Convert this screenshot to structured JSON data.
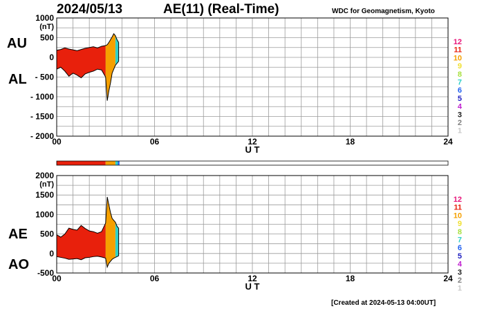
{
  "header": {
    "date": "2024/05/13",
    "title": "AE(11) (Real-Time)",
    "organization": "WDC for Geomagnetism, Kyoto"
  },
  "footer": {
    "created": "[Created at 2024-05-13 04:00UT]"
  },
  "legend": {
    "hours": [
      {
        "label": "12",
        "color": "#e8157a"
      },
      {
        "label": "11",
        "color": "#e8200c"
      },
      {
        "label": "10",
        "color": "#f5a000"
      },
      {
        "label": "9",
        "color": "#f0e030"
      },
      {
        "label": "8",
        "color": "#a8e040"
      },
      {
        "label": "7",
        "color": "#30d0c8"
      },
      {
        "label": "6",
        "color": "#2060f0"
      },
      {
        "label": "5",
        "color": "#2020c0"
      },
      {
        "label": "4",
        "color": "#c020d0"
      },
      {
        "label": "3",
        "color": "#202020"
      },
      {
        "label": "2",
        "color": "#808080"
      },
      {
        "label": "1",
        "color": "#c8c8c8"
      }
    ]
  },
  "colors": {
    "hour_11": "#e8200c",
    "hour_10": "#f5a000",
    "hour_7": "#30d0c8",
    "hour_6": "#2060f0",
    "grid": "#9a9a9a",
    "line": "#000000"
  },
  "status_bar": {
    "segments": [
      {
        "from_hour": 0,
        "to_hour": 3.0,
        "color": "#e8200c"
      },
      {
        "from_hour": 3.0,
        "to_hour": 3.6,
        "color": "#f5a000"
      },
      {
        "from_hour": 3.6,
        "to_hour": 3.75,
        "color": "#30d0c8"
      },
      {
        "from_hour": 3.75,
        "to_hour": 3.85,
        "color": "#2060f0"
      }
    ]
  },
  "chart_data": [
    {
      "type": "area",
      "panel": "AU/AL",
      "series_labels": [
        "AU",
        "AL"
      ],
      "ylabel": "(nT)",
      "xlabel": "U T",
      "xlim": [
        0,
        24
      ],
      "ylim": [
        -2000,
        1000
      ],
      "yticks": [
        1000,
        500,
        0,
        -500,
        -1000,
        -1500,
        -2000
      ],
      "yticklabels": [
        "1000",
        "500",
        "0",
        "- 500",
        "- 1000",
        "- 1500",
        "- 2000"
      ],
      "xticks": [
        0,
        6,
        12,
        18,
        24
      ],
      "xticklabels": [
        "00",
        "06",
        "12",
        "18",
        "24"
      ],
      "grid": true,
      "x": [
        0,
        0.25,
        0.5,
        0.75,
        1.0,
        1.25,
        1.5,
        1.75,
        2.0,
        2.25,
        2.5,
        2.75,
        3.0,
        3.1,
        3.2,
        3.3,
        3.4,
        3.5,
        3.6,
        3.7,
        3.8
      ],
      "upper": [
        180,
        200,
        240,
        210,
        190,
        170,
        200,
        230,
        250,
        270,
        240,
        280,
        300,
        320,
        380,
        450,
        520,
        600,
        550,
        450,
        380
      ],
      "lower": [
        -300,
        -250,
        -350,
        -480,
        -400,
        -450,
        -520,
        -420,
        -380,
        -350,
        -300,
        -320,
        -500,
        -1100,
        -850,
        -650,
        -400,
        -300,
        -200,
        -150,
        -100
      ],
      "hour_colors": [
        "#e8200c",
        "#f5a000",
        "#30d0c8"
      ]
    },
    {
      "type": "area",
      "panel": "AE/AO",
      "series_labels": [
        "AE",
        "AO"
      ],
      "ylabel": "(nT)",
      "xlabel": "U T",
      "xlim": [
        0,
        24
      ],
      "ylim": [
        -500,
        2000
      ],
      "yticks": [
        2000,
        1500,
        1000,
        500,
        0,
        -500
      ],
      "yticklabels": [
        "2000",
        "1500",
        "1000",
        "500",
        "0",
        "-500"
      ],
      "xticks": [
        0,
        6,
        12,
        18,
        24
      ],
      "xticklabels": [
        "00",
        "06",
        "12",
        "18",
        "24"
      ],
      "grid": true,
      "x": [
        0,
        0.25,
        0.5,
        0.75,
        1.0,
        1.25,
        1.5,
        1.75,
        2.0,
        2.25,
        2.5,
        2.75,
        3.0,
        3.1,
        3.2,
        3.3,
        3.4,
        3.5,
        3.6,
        3.7,
        3.8
      ],
      "upper": [
        480,
        420,
        500,
        650,
        620,
        600,
        720,
        640,
        580,
        560,
        520,
        560,
        780,
        1450,
        1250,
        1050,
        900,
        850,
        800,
        700,
        650
      ],
      "lower": [
        -80,
        -100,
        -120,
        -150,
        -140,
        -130,
        -160,
        -110,
        -100,
        -80,
        -70,
        -90,
        -120,
        -350,
        -250,
        -200,
        -150,
        -120,
        -100,
        -80,
        -60
      ],
      "hour_colors": [
        "#e8200c",
        "#f5a000",
        "#30d0c8"
      ]
    }
  ]
}
